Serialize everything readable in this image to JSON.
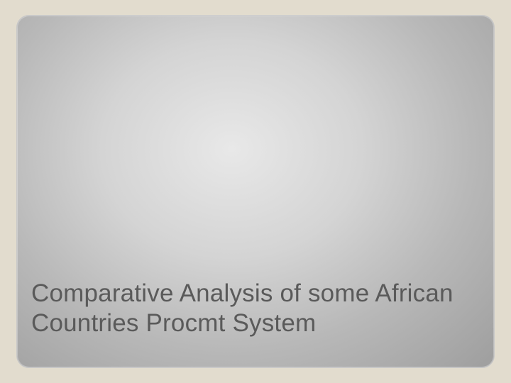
{
  "slide": {
    "title": "Comparative Analysis of some African Countries Procmt System"
  },
  "style": {
    "canvas_background": "#e2dcce",
    "frame_border_radius": 18,
    "frame_border_color": "#c8c8c8",
    "gradient_inner": "#e8e8e8",
    "gradient_mid": "#d4d4d4",
    "gradient_outer": "#9e9e9e",
    "title_color": "#5a5a5a",
    "title_fontsize": 35,
    "title_font_family": "Verdana",
    "title_line_height": 1.18
  }
}
